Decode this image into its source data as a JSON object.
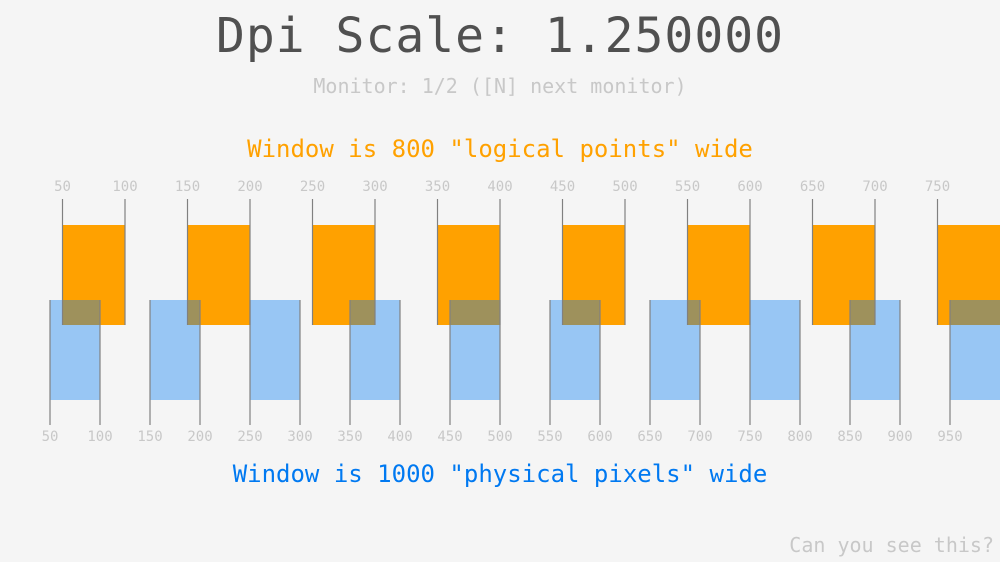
{
  "title": "Dpi Scale: 1.250000",
  "monitor_text": "Monitor: 1/2 ([N] next monitor)",
  "logical_text": "Window is 800 \"logical points\" wide",
  "physical_text": "Window is 1000 \"physical pixels\" wide",
  "hint_text": "Can you see this?",
  "dpi_scale": 1.25,
  "colors": {
    "orange": "#ffa100",
    "blue": "#0079f1",
    "line": "#808080",
    "label": "#c8c8c8",
    "title": "#505050",
    "background": "#f5f5f5"
  },
  "logical_ticks": [
    "50",
    "100",
    "150",
    "200",
    "250",
    "300",
    "350",
    "400",
    "450",
    "500",
    "550",
    "600",
    "650",
    "700",
    "750"
  ],
  "physical_ticks": [
    "50",
    "100",
    "150",
    "200",
    "250",
    "300",
    "350",
    "400",
    "450",
    "500",
    "550",
    "600",
    "650",
    "700",
    "750",
    "800",
    "850",
    "900",
    "950"
  ]
}
